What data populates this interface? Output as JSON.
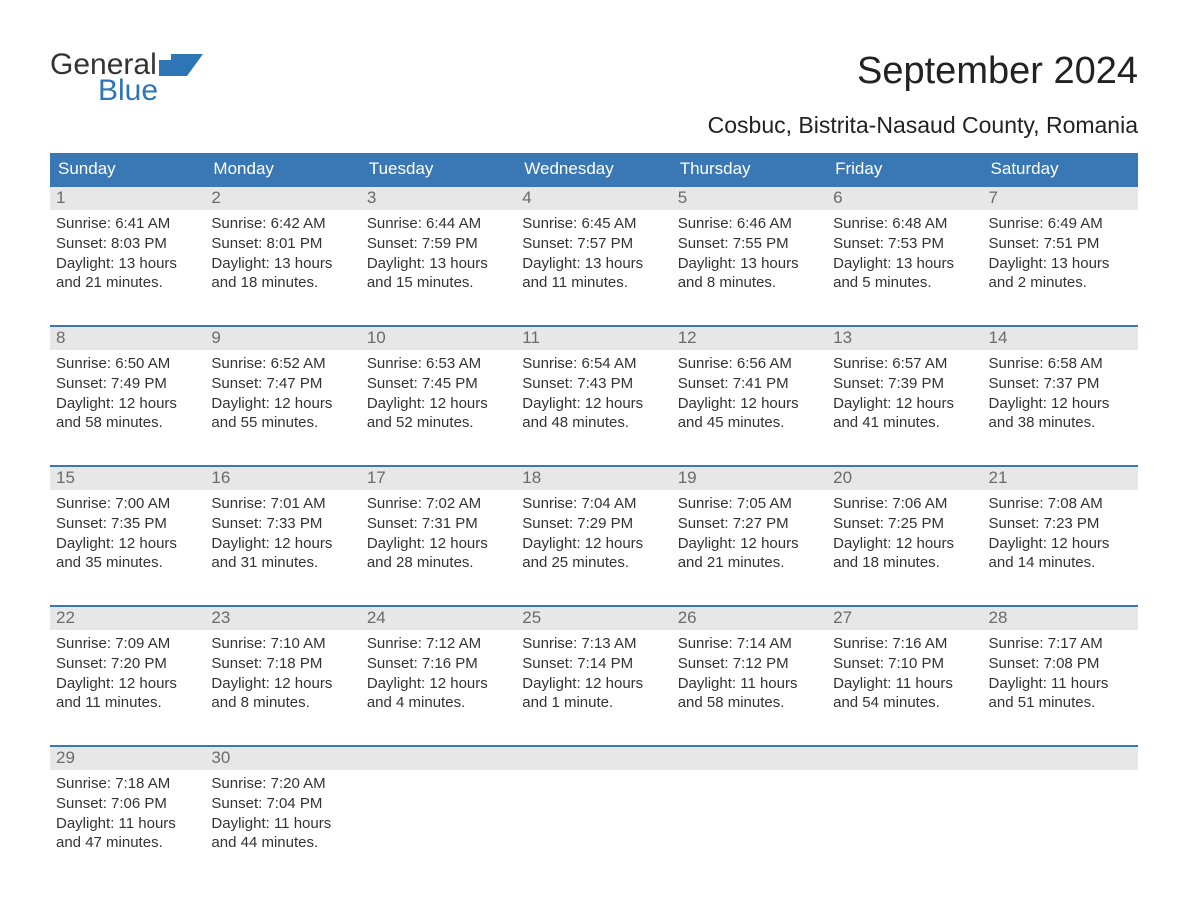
{
  "logo": {
    "word1": "General",
    "word2": "Blue",
    "shape_color": "#2e75b6",
    "text1_color": "#333333",
    "text2_color": "#2e75b6"
  },
  "title": "September 2024",
  "location": "Cosbuc, Bistrita-Nasaud County, Romania",
  "colors": {
    "header_bg": "#3a78b5",
    "header_text": "#ffffff",
    "daynum_bg": "#e7e7e7",
    "daynum_text": "#6b6b6b",
    "body_text": "#333333",
    "week_border": "#3a78b5",
    "page_bg": "#ffffff"
  },
  "typography": {
    "title_fontsize": 38,
    "location_fontsize": 23,
    "dow_fontsize": 17,
    "daynum_fontsize": 17,
    "body_fontsize": 15
  },
  "days_of_week": [
    "Sunday",
    "Monday",
    "Tuesday",
    "Wednesday",
    "Thursday",
    "Friday",
    "Saturday"
  ],
  "weeks": [
    [
      {
        "n": "1",
        "sunrise": "Sunrise: 6:41 AM",
        "sunset": "Sunset: 8:03 PM",
        "d1": "Daylight: 13 hours",
        "d2": "and 21 minutes."
      },
      {
        "n": "2",
        "sunrise": "Sunrise: 6:42 AM",
        "sunset": "Sunset: 8:01 PM",
        "d1": "Daylight: 13 hours",
        "d2": "and 18 minutes."
      },
      {
        "n": "3",
        "sunrise": "Sunrise: 6:44 AM",
        "sunset": "Sunset: 7:59 PM",
        "d1": "Daylight: 13 hours",
        "d2": "and 15 minutes."
      },
      {
        "n": "4",
        "sunrise": "Sunrise: 6:45 AM",
        "sunset": "Sunset: 7:57 PM",
        "d1": "Daylight: 13 hours",
        "d2": "and 11 minutes."
      },
      {
        "n": "5",
        "sunrise": "Sunrise: 6:46 AM",
        "sunset": "Sunset: 7:55 PM",
        "d1": "Daylight: 13 hours",
        "d2": "and 8 minutes."
      },
      {
        "n": "6",
        "sunrise": "Sunrise: 6:48 AM",
        "sunset": "Sunset: 7:53 PM",
        "d1": "Daylight: 13 hours",
        "d2": "and 5 minutes."
      },
      {
        "n": "7",
        "sunrise": "Sunrise: 6:49 AM",
        "sunset": "Sunset: 7:51 PM",
        "d1": "Daylight: 13 hours",
        "d2": "and 2 minutes."
      }
    ],
    [
      {
        "n": "8",
        "sunrise": "Sunrise: 6:50 AM",
        "sunset": "Sunset: 7:49 PM",
        "d1": "Daylight: 12 hours",
        "d2": "and 58 minutes."
      },
      {
        "n": "9",
        "sunrise": "Sunrise: 6:52 AM",
        "sunset": "Sunset: 7:47 PM",
        "d1": "Daylight: 12 hours",
        "d2": "and 55 minutes."
      },
      {
        "n": "10",
        "sunrise": "Sunrise: 6:53 AM",
        "sunset": "Sunset: 7:45 PM",
        "d1": "Daylight: 12 hours",
        "d2": "and 52 minutes."
      },
      {
        "n": "11",
        "sunrise": "Sunrise: 6:54 AM",
        "sunset": "Sunset: 7:43 PM",
        "d1": "Daylight: 12 hours",
        "d2": "and 48 minutes."
      },
      {
        "n": "12",
        "sunrise": "Sunrise: 6:56 AM",
        "sunset": "Sunset: 7:41 PM",
        "d1": "Daylight: 12 hours",
        "d2": "and 45 minutes."
      },
      {
        "n": "13",
        "sunrise": "Sunrise: 6:57 AM",
        "sunset": "Sunset: 7:39 PM",
        "d1": "Daylight: 12 hours",
        "d2": "and 41 minutes."
      },
      {
        "n": "14",
        "sunrise": "Sunrise: 6:58 AM",
        "sunset": "Sunset: 7:37 PM",
        "d1": "Daylight: 12 hours",
        "d2": "and 38 minutes."
      }
    ],
    [
      {
        "n": "15",
        "sunrise": "Sunrise: 7:00 AM",
        "sunset": "Sunset: 7:35 PM",
        "d1": "Daylight: 12 hours",
        "d2": "and 35 minutes."
      },
      {
        "n": "16",
        "sunrise": "Sunrise: 7:01 AM",
        "sunset": "Sunset: 7:33 PM",
        "d1": "Daylight: 12 hours",
        "d2": "and 31 minutes."
      },
      {
        "n": "17",
        "sunrise": "Sunrise: 7:02 AM",
        "sunset": "Sunset: 7:31 PM",
        "d1": "Daylight: 12 hours",
        "d2": "and 28 minutes."
      },
      {
        "n": "18",
        "sunrise": "Sunrise: 7:04 AM",
        "sunset": "Sunset: 7:29 PM",
        "d1": "Daylight: 12 hours",
        "d2": "and 25 minutes."
      },
      {
        "n": "19",
        "sunrise": "Sunrise: 7:05 AM",
        "sunset": "Sunset: 7:27 PM",
        "d1": "Daylight: 12 hours",
        "d2": "and 21 minutes."
      },
      {
        "n": "20",
        "sunrise": "Sunrise: 7:06 AM",
        "sunset": "Sunset: 7:25 PM",
        "d1": "Daylight: 12 hours",
        "d2": "and 18 minutes."
      },
      {
        "n": "21",
        "sunrise": "Sunrise: 7:08 AM",
        "sunset": "Sunset: 7:23 PM",
        "d1": "Daylight: 12 hours",
        "d2": "and 14 minutes."
      }
    ],
    [
      {
        "n": "22",
        "sunrise": "Sunrise: 7:09 AM",
        "sunset": "Sunset: 7:20 PM",
        "d1": "Daylight: 12 hours",
        "d2": "and 11 minutes."
      },
      {
        "n": "23",
        "sunrise": "Sunrise: 7:10 AM",
        "sunset": "Sunset: 7:18 PM",
        "d1": "Daylight: 12 hours",
        "d2": "and 8 minutes."
      },
      {
        "n": "24",
        "sunrise": "Sunrise: 7:12 AM",
        "sunset": "Sunset: 7:16 PM",
        "d1": "Daylight: 12 hours",
        "d2": "and 4 minutes."
      },
      {
        "n": "25",
        "sunrise": "Sunrise: 7:13 AM",
        "sunset": "Sunset: 7:14 PM",
        "d1": "Daylight: 12 hours",
        "d2": "and 1 minute."
      },
      {
        "n": "26",
        "sunrise": "Sunrise: 7:14 AM",
        "sunset": "Sunset: 7:12 PM",
        "d1": "Daylight: 11 hours",
        "d2": "and 58 minutes."
      },
      {
        "n": "27",
        "sunrise": "Sunrise: 7:16 AM",
        "sunset": "Sunset: 7:10 PM",
        "d1": "Daylight: 11 hours",
        "d2": "and 54 minutes."
      },
      {
        "n": "28",
        "sunrise": "Sunrise: 7:17 AM",
        "sunset": "Sunset: 7:08 PM",
        "d1": "Daylight: 11 hours",
        "d2": "and 51 minutes."
      }
    ],
    [
      {
        "n": "29",
        "sunrise": "Sunrise: 7:18 AM",
        "sunset": "Sunset: 7:06 PM",
        "d1": "Daylight: 11 hours",
        "d2": "and 47 minutes."
      },
      {
        "n": "30",
        "sunrise": "Sunrise: 7:20 AM",
        "sunset": "Sunset: 7:04 PM",
        "d1": "Daylight: 11 hours",
        "d2": "and 44 minutes."
      },
      {
        "empty": true
      },
      {
        "empty": true
      },
      {
        "empty": true
      },
      {
        "empty": true
      },
      {
        "empty": true
      }
    ]
  ]
}
